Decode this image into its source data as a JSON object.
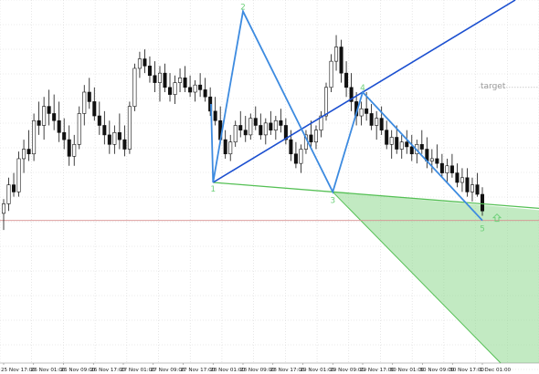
{
  "colors": {
    "background": "#ffffff",
    "grid": "#d7d7d7",
    "candle_bull": "#ffffff",
    "candle_bear": "#111111",
    "candle_wick": "#111111",
    "wave_line": "#3d8be0",
    "wave_label": "#6fd07a",
    "trend_channel": "#1b4fd0",
    "lower_trend": "#55c055",
    "target_zone_fill": "#8fd890",
    "horizontal_level": "#d89090",
    "arrow": "#6fd07a",
    "target_text": "#9a9a9a"
  },
  "annotations": {
    "target_label": "target",
    "wave_points": [
      "1",
      "2",
      "3",
      "4",
      "5"
    ]
  },
  "chart_data": {
    "type": "candlestick",
    "instrument_timeframe": "hourly",
    "title": "",
    "xlabel": "",
    "ylabel": "",
    "grid": true,
    "x_tick_labels": [
      "25 Nov 17:00",
      "26 Nov 01:00",
      "26 Nov 09:00",
      "26 Nov 17:00",
      "27 Nov 01:00",
      "27 Nov 09:00",
      "27 Nov 17:00",
      "28 Nov 01:00",
      "28 Nov 09:00",
      "28 Nov 17:00",
      "29 Nov 01:00",
      "29 Nov 09:00",
      "29 Nov 17:00",
      "30 Nov 01:00",
      "30 Nov 09:00",
      "30 Nov 17:00",
      "1 Dec 01:00"
    ],
    "candles": [
      {
        "o": 33,
        "h": 39,
        "l": 26,
        "c": 37
      },
      {
        "o": 37,
        "h": 48,
        "l": 34,
        "c": 45
      },
      {
        "o": 45,
        "h": 50,
        "l": 40,
        "c": 42
      },
      {
        "o": 42,
        "h": 59,
        "l": 40,
        "c": 56
      },
      {
        "o": 56,
        "h": 64,
        "l": 50,
        "c": 60
      },
      {
        "o": 60,
        "h": 68,
        "l": 55,
        "c": 58
      },
      {
        "o": 58,
        "h": 75,
        "l": 55,
        "c": 72
      },
      {
        "o": 72,
        "h": 80,
        "l": 66,
        "c": 70
      },
      {
        "o": 70,
        "h": 82,
        "l": 64,
        "c": 78
      },
      {
        "o": 78,
        "h": 85,
        "l": 70,
        "c": 75
      },
      {
        "o": 75,
        "h": 83,
        "l": 68,
        "c": 72
      },
      {
        "o": 72,
        "h": 80,
        "l": 63,
        "c": 67
      },
      {
        "o": 67,
        "h": 73,
        "l": 60,
        "c": 64
      },
      {
        "o": 64,
        "h": 70,
        "l": 53,
        "c": 57
      },
      {
        "o": 57,
        "h": 66,
        "l": 53,
        "c": 62
      },
      {
        "o": 62,
        "h": 78,
        "l": 60,
        "c": 75
      },
      {
        "o": 75,
        "h": 87,
        "l": 70,
        "c": 84
      },
      {
        "o": 84,
        "h": 90,
        "l": 77,
        "c": 80
      },
      {
        "o": 80,
        "h": 86,
        "l": 72,
        "c": 74
      },
      {
        "o": 74,
        "h": 80,
        "l": 66,
        "c": 70
      },
      {
        "o": 70,
        "h": 76,
        "l": 62,
        "c": 66
      },
      {
        "o": 66,
        "h": 72,
        "l": 58,
        "c": 62
      },
      {
        "o": 62,
        "h": 70,
        "l": 58,
        "c": 67
      },
      {
        "o": 67,
        "h": 75,
        "l": 60,
        "c": 64
      },
      {
        "o": 64,
        "h": 70,
        "l": 57,
        "c": 60
      },
      {
        "o": 60,
        "h": 80,
        "l": 58,
        "c": 78
      },
      {
        "o": 78,
        "h": 96,
        "l": 76,
        "c": 94
      },
      {
        "o": 94,
        "h": 101,
        "l": 90,
        "c": 98
      },
      {
        "o": 98,
        "h": 102,
        "l": 92,
        "c": 95
      },
      {
        "o": 95,
        "h": 99,
        "l": 88,
        "c": 91
      },
      {
        "o": 91,
        "h": 97,
        "l": 84,
        "c": 88
      },
      {
        "o": 88,
        "h": 95,
        "l": 80,
        "c": 92
      },
      {
        "o": 92,
        "h": 96,
        "l": 84,
        "c": 86
      },
      {
        "o": 86,
        "h": 92,
        "l": 80,
        "c": 83
      },
      {
        "o": 83,
        "h": 91,
        "l": 79,
        "c": 88
      },
      {
        "o": 88,
        "h": 94,
        "l": 84,
        "c": 90
      },
      {
        "o": 90,
        "h": 95,
        "l": 84,
        "c": 86
      },
      {
        "o": 86,
        "h": 91,
        "l": 82,
        "c": 84
      },
      {
        "o": 84,
        "h": 89,
        "l": 80,
        "c": 87
      },
      {
        "o": 87,
        "h": 92,
        "l": 82,
        "c": 85
      },
      {
        "o": 85,
        "h": 90,
        "l": 80,
        "c": 82
      },
      {
        "o": 82,
        "h": 86,
        "l": 74,
        "c": 76
      },
      {
        "o": 76,
        "h": 82,
        "l": 70,
        "c": 72
      },
      {
        "o": 72,
        "h": 78,
        "l": 62,
        "c": 64
      },
      {
        "o": 64,
        "h": 68,
        "l": 56,
        "c": 58
      },
      {
        "o": 58,
        "h": 66,
        "l": 55,
        "c": 63
      },
      {
        "o": 63,
        "h": 72,
        "l": 61,
        "c": 70
      },
      {
        "o": 70,
        "h": 76,
        "l": 65,
        "c": 68
      },
      {
        "o": 68,
        "h": 74,
        "l": 63,
        "c": 66
      },
      {
        "o": 66,
        "h": 75,
        "l": 64,
        "c": 73
      },
      {
        "o": 73,
        "h": 78,
        "l": 68,
        "c": 70
      },
      {
        "o": 70,
        "h": 75,
        "l": 64,
        "c": 66
      },
      {
        "o": 66,
        "h": 73,
        "l": 62,
        "c": 71
      },
      {
        "o": 71,
        "h": 76,
        "l": 66,
        "c": 68
      },
      {
        "o": 68,
        "h": 74,
        "l": 64,
        "c": 72
      },
      {
        "o": 72,
        "h": 77,
        "l": 67,
        "c": 70
      },
      {
        "o": 70,
        "h": 73,
        "l": 62,
        "c": 64
      },
      {
        "o": 64,
        "h": 68,
        "l": 55,
        "c": 58
      },
      {
        "o": 58,
        "h": 63,
        "l": 52,
        "c": 54
      },
      {
        "o": 54,
        "h": 62,
        "l": 50,
        "c": 60
      },
      {
        "o": 60,
        "h": 68,
        "l": 58,
        "c": 66
      },
      {
        "o": 66,
        "h": 72,
        "l": 61,
        "c": 63
      },
      {
        "o": 63,
        "h": 70,
        "l": 60,
        "c": 68
      },
      {
        "o": 68,
        "h": 76,
        "l": 65,
        "c": 74
      },
      {
        "o": 74,
        "h": 88,
        "l": 72,
        "c": 86
      },
      {
        "o": 86,
        "h": 100,
        "l": 84,
        "c": 97
      },
      {
        "o": 97,
        "h": 108,
        "l": 93,
        "c": 103
      },
      {
        "o": 103,
        "h": 106,
        "l": 88,
        "c": 92
      },
      {
        "o": 92,
        "h": 97,
        "l": 82,
        "c": 86
      },
      {
        "o": 86,
        "h": 92,
        "l": 76,
        "c": 80
      },
      {
        "o": 80,
        "h": 84,
        "l": 70,
        "c": 74
      },
      {
        "o": 74,
        "h": 80,
        "l": 70,
        "c": 77
      },
      {
        "o": 77,
        "h": 84,
        "l": 72,
        "c": 75
      },
      {
        "o": 75,
        "h": 79,
        "l": 68,
        "c": 70
      },
      {
        "o": 70,
        "h": 76,
        "l": 64,
        "c": 73
      },
      {
        "o": 73,
        "h": 78,
        "l": 66,
        "c": 68
      },
      {
        "o": 68,
        "h": 72,
        "l": 60,
        "c": 62
      },
      {
        "o": 62,
        "h": 68,
        "l": 56,
        "c": 65
      },
      {
        "o": 65,
        "h": 70,
        "l": 58,
        "c": 60
      },
      {
        "o": 60,
        "h": 66,
        "l": 56,
        "c": 63
      },
      {
        "o": 63,
        "h": 68,
        "l": 58,
        "c": 61
      },
      {
        "o": 61,
        "h": 66,
        "l": 55,
        "c": 58
      },
      {
        "o": 58,
        "h": 64,
        "l": 54,
        "c": 62
      },
      {
        "o": 62,
        "h": 68,
        "l": 58,
        "c": 60
      },
      {
        "o": 60,
        "h": 65,
        "l": 52,
        "c": 55
      },
      {
        "o": 55,
        "h": 60,
        "l": 50,
        "c": 56
      },
      {
        "o": 56,
        "h": 62,
        "l": 52,
        "c": 54
      },
      {
        "o": 54,
        "h": 58,
        "l": 48,
        "c": 50
      },
      {
        "o": 50,
        "h": 56,
        "l": 46,
        "c": 53
      },
      {
        "o": 53,
        "h": 58,
        "l": 48,
        "c": 50
      },
      {
        "o": 50,
        "h": 54,
        "l": 44,
        "c": 46
      },
      {
        "o": 46,
        "h": 52,
        "l": 42,
        "c": 48
      },
      {
        "o": 48,
        "h": 52,
        "l": 40,
        "c": 42
      },
      {
        "o": 42,
        "h": 48,
        "l": 38,
        "c": 45
      },
      {
        "o": 45,
        "h": 50,
        "l": 40,
        "c": 41
      },
      {
        "o": 41,
        "h": 44,
        "l": 32,
        "c": 34
      }
    ],
    "target_level": 86,
    "horizontal_level": 30,
    "wave_pattern": [
      {
        "label": "1",
        "x": "28 Nov 01:00",
        "y": 46
      },
      {
        "label": "2",
        "x": "28 Nov 09:00",
        "y": 118
      },
      {
        "label": "3",
        "x": "29 Nov 09:00",
        "y": 42
      },
      {
        "label": "4",
        "x": "29 Nov 17:00",
        "y": 84
      },
      {
        "label": "5",
        "x": "1 Dec 01:00",
        "y": 30
      }
    ]
  }
}
